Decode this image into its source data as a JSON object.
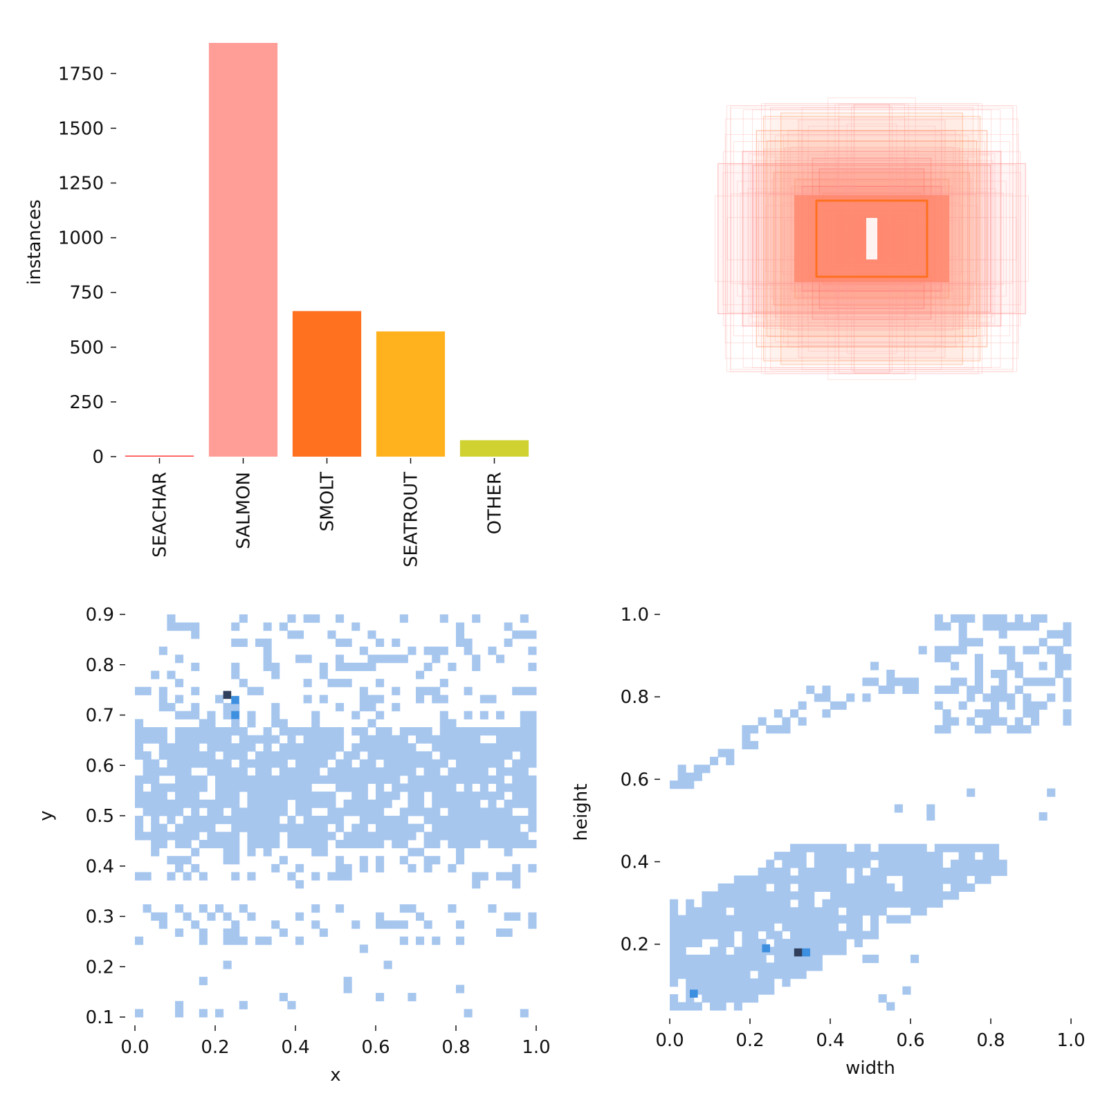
{
  "chart_data": [
    {
      "type": "bar",
      "ylabel": "instances",
      "categories": [
        "SEACHAR",
        "SALMON",
        "SMOLT",
        "SEATROUT",
        "OTHER"
      ],
      "values": [
        2,
        1890,
        665,
        572,
        75
      ],
      "colors": [
        "#ff3838",
        "#ff9d97",
        "#ff701f",
        "#ffb21d",
        "#cfd231"
      ],
      "ylim": [
        0,
        1890
      ],
      "yticks": [
        "0",
        "250",
        "500",
        "750",
        "1000",
        "1250",
        "1500",
        "1750"
      ]
    },
    {
      "type": "box-overlay",
      "description_colors": [
        "#ff3838",
        "#ff9d97",
        "#ff701f"
      ],
      "boxes_wh": [
        [
          0.88,
          0.43
        ],
        [
          0.58,
          0.75
        ],
        [
          0.52,
          0.72
        ],
        [
          0.68,
          0.42
        ],
        [
          0.38,
          0.22
        ],
        [
          0.32,
          0.2
        ],
        [
          0.26,
          0.16
        ],
        [
          0.46,
          0.3
        ],
        [
          0.56,
          0.38
        ],
        [
          0.74,
          0.5
        ],
        [
          0.42,
          0.68
        ],
        [
          0.6,
          0.56
        ],
        [
          0.2,
          0.14
        ],
        [
          0.12,
          0.12
        ],
        [
          0.28,
          0.26
        ],
        [
          0.34,
          0.46
        ],
        [
          0.48,
          0.62
        ],
        [
          0.66,
          0.62
        ],
        [
          0.3,
          0.4
        ],
        [
          0.5,
          0.52
        ],
        [
          0.1,
          0.08
        ],
        [
          0.06,
          0.12
        ],
        [
          0.16,
          0.24
        ],
        [
          0.44,
          0.34
        ],
        [
          0.36,
          0.24
        ],
        [
          0.55,
          0.45
        ],
        [
          0.62,
          0.7
        ],
        [
          0.4,
          0.3
        ]
      ]
    },
    {
      "type": "heatmap",
      "xlabel": "x",
      "ylabel": "y",
      "xlim": [
        0.0,
        1.0
      ],
      "ylim": [
        0.1,
        0.9
      ],
      "xticks": [
        "0.0",
        "0.2",
        "0.4",
        "0.6",
        "0.8",
        "1.0"
      ],
      "yticks": [
        "0.1",
        "0.2",
        "0.3",
        "0.4",
        "0.5",
        "0.6",
        "0.7",
        "0.8",
        "0.9"
      ],
      "hot_cells": [
        [
          0.23,
          0.74
        ],
        [
          0.25,
          0.73
        ],
        [
          0.25,
          0.7
        ]
      ]
    },
    {
      "type": "heatmap",
      "xlabel": "width",
      "ylabel": "height",
      "xlim": [
        0.0,
        1.0
      ],
      "ylim": [
        0.04,
        1.0
      ],
      "xticks": [
        "0.0",
        "0.2",
        "0.4",
        "0.6",
        "0.8",
        "1.0"
      ],
      "yticks": [
        "0.2",
        "0.4",
        "0.6",
        "0.8",
        "1.0"
      ],
      "hot_cells": [
        [
          0.32,
          0.18
        ],
        [
          0.34,
          0.18
        ],
        [
          0.24,
          0.19
        ],
        [
          0.06,
          0.08
        ]
      ]
    }
  ]
}
